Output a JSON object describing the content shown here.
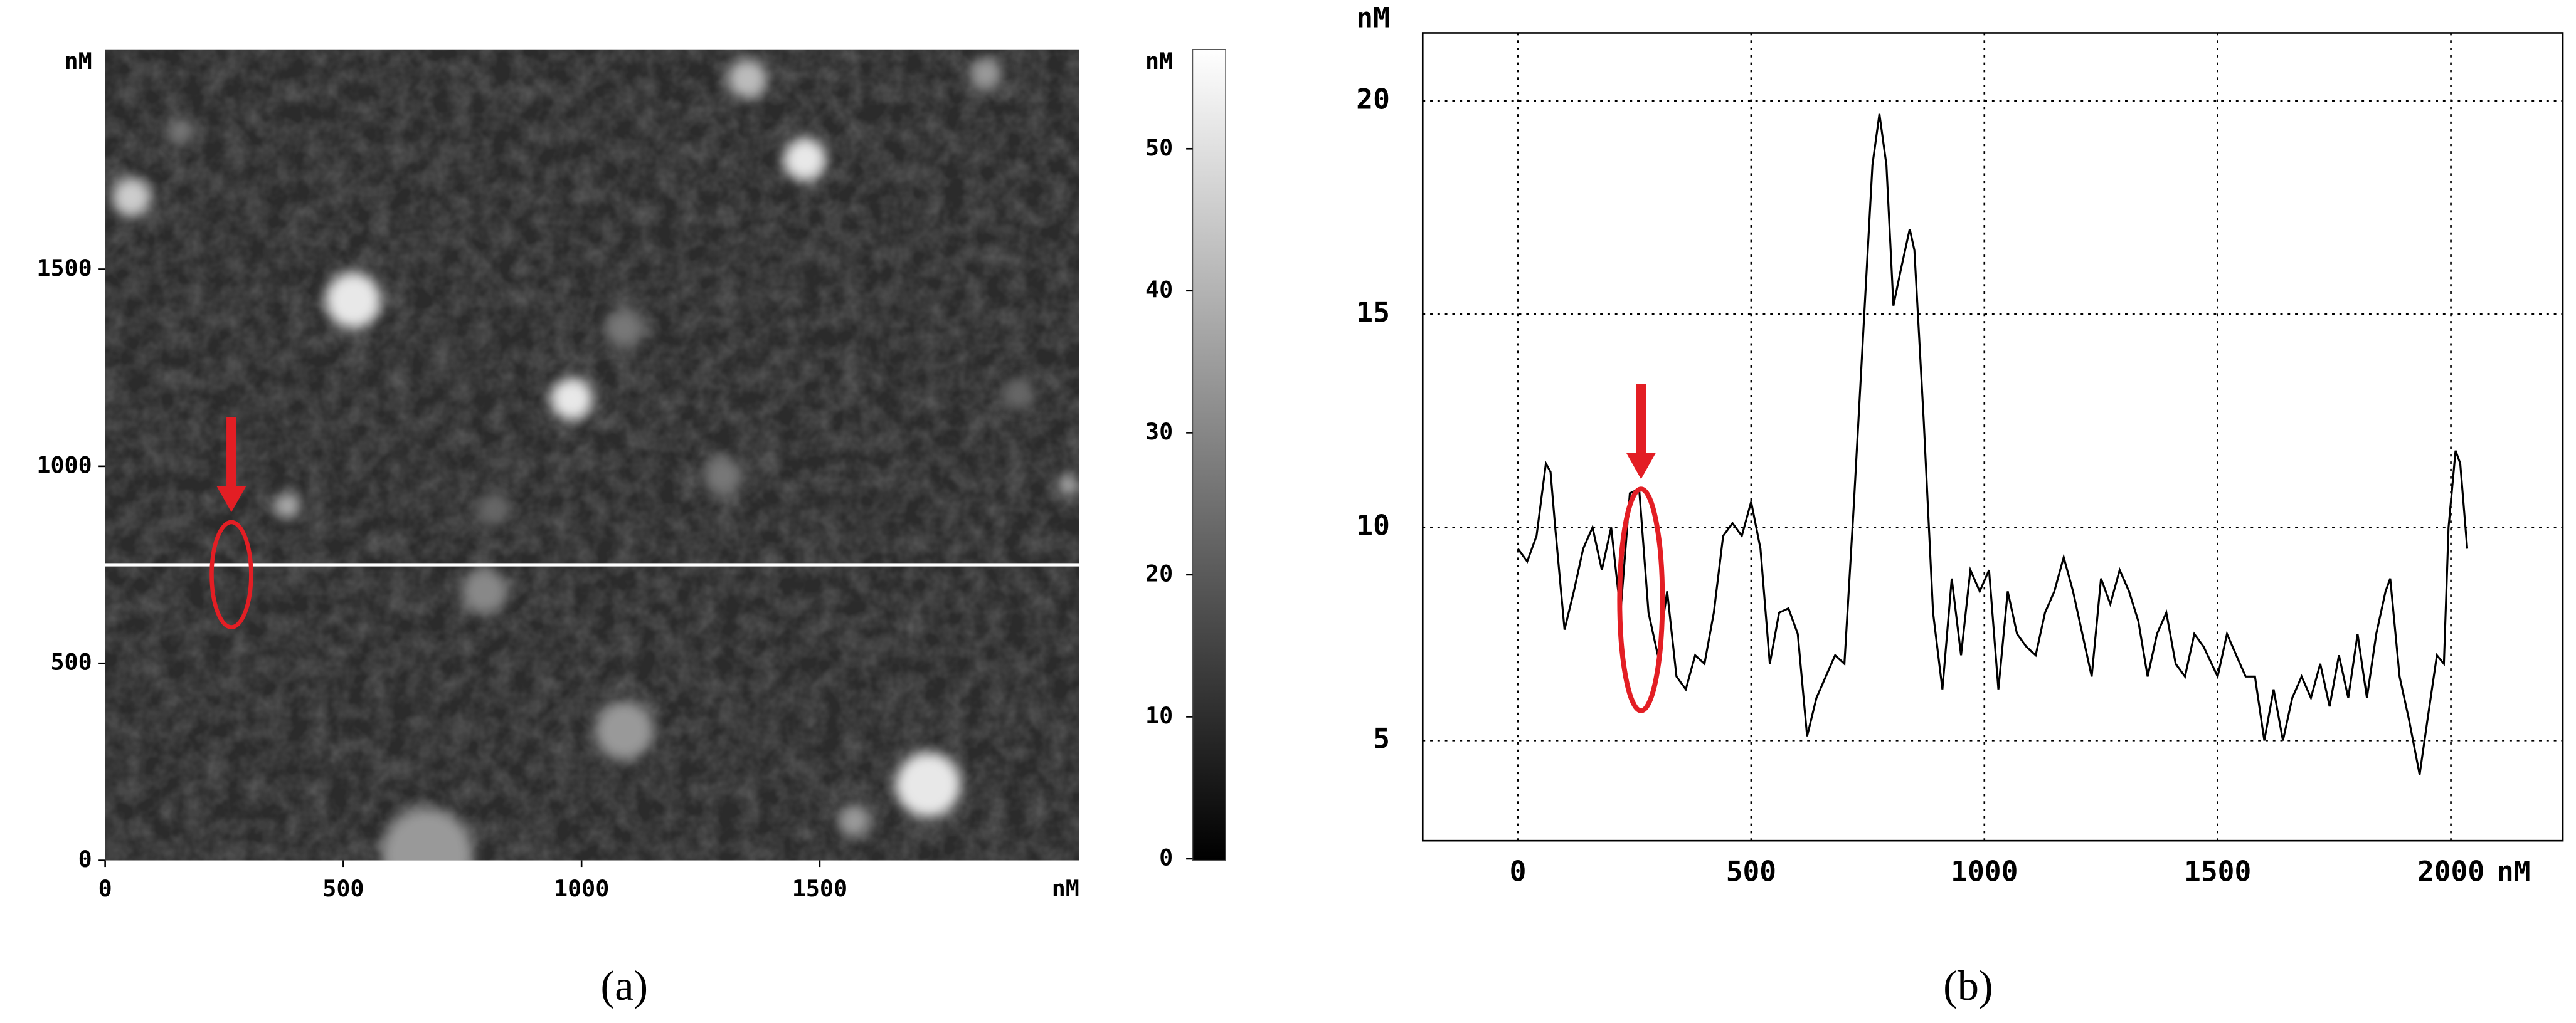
{
  "captions": [
    "(a)",
    "(b)"
  ],
  "chart_data": [
    {
      "type": "heatmap",
      "xlim": [
        0,
        2045
      ],
      "ylim": [
        0,
        2058
      ],
      "xticks": [
        0,
        500,
        1000,
        1500
      ],
      "yticks": [
        0,
        500,
        1000,
        1500
      ],
      "x_unit": "nM",
      "y_unit": "nM",
      "colorbar": {
        "lim": [
          0,
          57
        ],
        "ticks": [
          0,
          10,
          20,
          30,
          40,
          50
        ],
        "unit": "nM"
      },
      "scan_line_y": 750,
      "scan_line_color": "#ffffff",
      "marker": {
        "x": 265,
        "y": 725,
        "color": "#e31e24"
      }
    },
    {
      "type": "line",
      "x": [
        0,
        20,
        40,
        60,
        70,
        80,
        100,
        120,
        140,
        160,
        180,
        200,
        220,
        240,
        260,
        280,
        300,
        320,
        340,
        360,
        380,
        400,
        420,
        440,
        460,
        480,
        500,
        520,
        540,
        560,
        580,
        600,
        620,
        640,
        660,
        680,
        700,
        720,
        740,
        760,
        775,
        790,
        805,
        820,
        840,
        850,
        870,
        890,
        910,
        930,
        950,
        970,
        990,
        1010,
        1030,
        1050,
        1070,
        1090,
        1110,
        1130,
        1150,
        1170,
        1190,
        1210,
        1230,
        1250,
        1270,
        1290,
        1310,
        1330,
        1350,
        1370,
        1390,
        1410,
        1430,
        1450,
        1470,
        1500,
        1520,
        1540,
        1560,
        1580,
        1600,
        1620,
        1640,
        1660,
        1680,
        1700,
        1720,
        1740,
        1760,
        1780,
        1800,
        1820,
        1840,
        1860,
        1870,
        1890,
        1910,
        1933,
        1950,
        1970,
        1985,
        1995,
        2010,
        2020,
        2035
      ],
      "values": [
        9.5,
        9.2,
        9.8,
        11.5,
        11.3,
        10.0,
        7.6,
        8.5,
        9.5,
        10.0,
        9.0,
        10.0,
        8.0,
        10.8,
        10.9,
        8.0,
        7.0,
        8.5,
        6.5,
        6.2,
        7.0,
        6.8,
        8.0,
        9.8,
        10.1,
        9.8,
        10.6,
        9.5,
        6.8,
        8.0,
        8.1,
        7.5,
        5.1,
        6.0,
        6.5,
        7.0,
        6.8,
        10.5,
        14.5,
        18.5,
        19.7,
        18.5,
        15.2,
        16.0,
        17.0,
        16.5,
        12.5,
        8.0,
        6.2,
        8.8,
        7.0,
        9.0,
        8.5,
        9.0,
        6.2,
        8.5,
        7.5,
        7.2,
        7.0,
        8.0,
        8.5,
        9.3,
        8.5,
        7.5,
        6.5,
        8.8,
        8.2,
        9.0,
        8.5,
        7.8,
        6.5,
        7.5,
        8.0,
        6.8,
        6.5,
        7.5,
        7.2,
        6.5,
        7.5,
        7.0,
        6.5,
        6.5,
        5.0,
        6.2,
        5.0,
        6.0,
        6.5,
        6.0,
        6.8,
        5.8,
        7.0,
        6.0,
        7.5,
        6.0,
        7.5,
        8.5,
        8.8,
        6.5,
        5.5,
        4.2,
        5.5,
        7.0,
        6.8,
        10.0,
        11.8,
        11.5,
        9.5
      ],
      "color": "#000000",
      "xlim": [
        -204,
        2240
      ],
      "ylim": [
        2.65,
        21.6
      ],
      "xticks": [
        0,
        500,
        1000,
        1500,
        2000
      ],
      "yticks": [
        5,
        10,
        15,
        20
      ],
      "x_unit": "nM",
      "y_unit": "nM",
      "grid": true,
      "marker": {
        "x": 264,
        "y_top": 10.9,
        "y_bottom": 5.7,
        "color": "#e31e24"
      }
    }
  ]
}
